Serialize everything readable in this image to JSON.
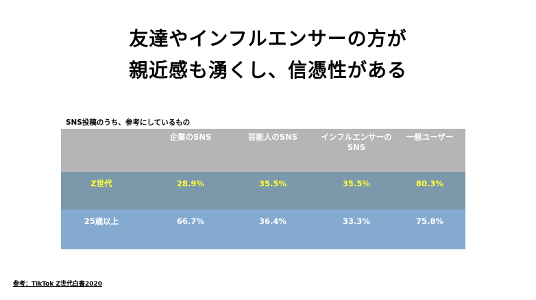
{
  "title": {
    "line1": "友達やインフルエンサーの方が",
    "line2": "親近感も湧くし、信憑性がある"
  },
  "table": {
    "caption": "SNS投稿のうち、参考にしているもの",
    "headers": [
      "",
      "企業のSNS",
      "芸能人のSNS",
      "インフルエンサーの\nSNS",
      "一般ユーザー"
    ],
    "rows": [
      {
        "label": "Z世代",
        "values": [
          "28.9%",
          "35.5%",
          "35.5%",
          "80.3%"
        ],
        "highlight": true
      },
      {
        "label": "25歳以上",
        "values": [
          "66.7%",
          "36.4%",
          "33.3%",
          "75.8%"
        ],
        "highlight": false
      }
    ]
  },
  "colors": {
    "header_bg": "#b5b5b5",
    "genz_row_bg": "#7c98ab",
    "adult_row_bg": "#85aad0",
    "highlight_text": "#ffff33",
    "normal_text": "#ffffff"
  },
  "source": "参考：TikTok Z世代白書2020"
}
